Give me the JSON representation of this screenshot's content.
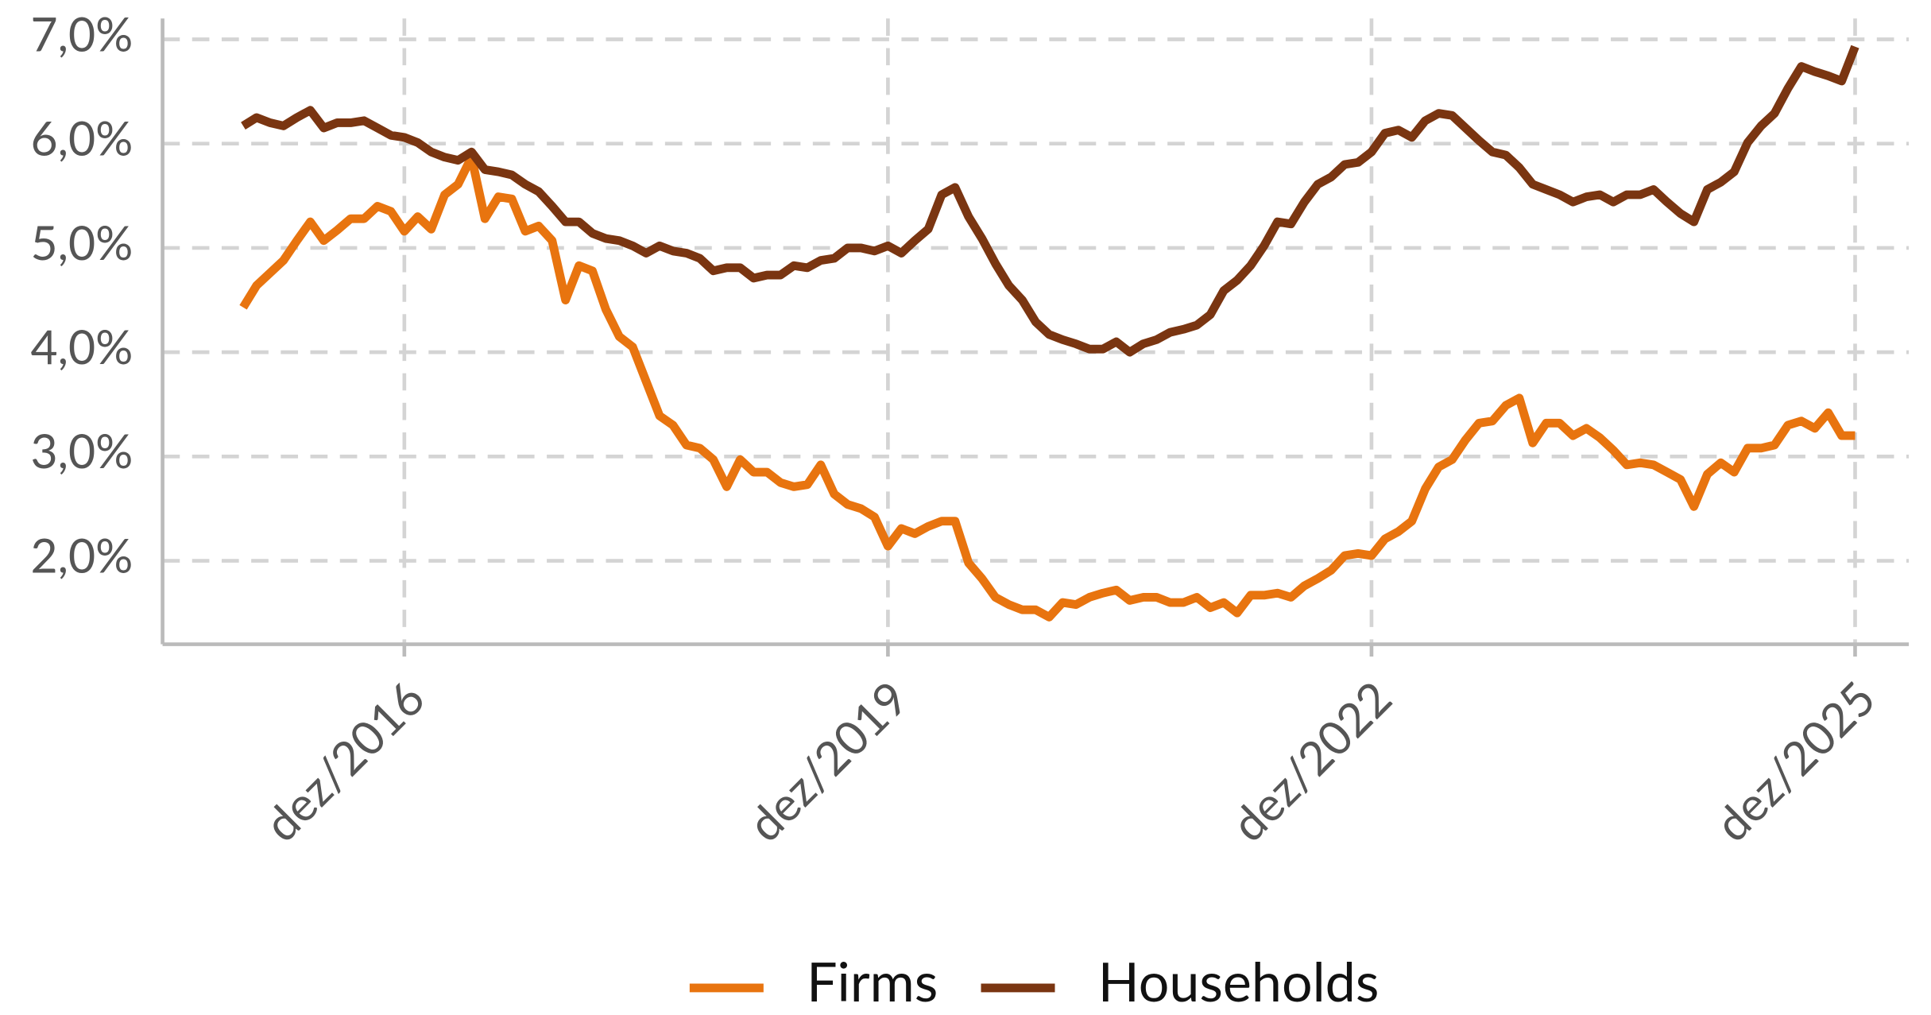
{
  "chart_data": {
    "type": "line",
    "x": [
      "2015-12",
      "2016-01",
      "2016-02",
      "2016-03",
      "2016-04",
      "2016-05",
      "2016-06",
      "2016-07",
      "2016-08",
      "2016-09",
      "2016-10",
      "2016-11",
      "2016-12",
      "2017-01",
      "2017-02",
      "2017-03",
      "2017-04",
      "2017-05",
      "2017-06",
      "2017-07",
      "2017-08",
      "2017-09",
      "2017-10",
      "2017-11",
      "2017-12",
      "2018-01",
      "2018-02",
      "2018-03",
      "2018-04",
      "2018-05",
      "2018-06",
      "2018-07",
      "2018-08",
      "2018-09",
      "2018-10",
      "2018-11",
      "2018-12",
      "2019-01",
      "2019-02",
      "2019-03",
      "2019-04",
      "2019-05",
      "2019-06",
      "2019-07",
      "2019-08",
      "2019-09",
      "2019-10",
      "2019-11",
      "2019-12",
      "2020-01",
      "2020-02",
      "2020-03",
      "2020-04",
      "2020-05",
      "2020-06",
      "2020-07",
      "2020-08",
      "2020-09",
      "2020-10",
      "2020-11",
      "2020-12",
      "2021-01",
      "2021-02",
      "2021-03",
      "2021-04",
      "2021-05",
      "2021-06",
      "2021-07",
      "2021-08",
      "2021-09",
      "2021-10",
      "2021-11",
      "2021-12",
      "2022-01",
      "2022-02",
      "2022-03",
      "2022-04",
      "2022-05",
      "2022-06",
      "2022-07",
      "2022-08",
      "2022-09",
      "2022-10",
      "2022-11",
      "2022-12",
      "2023-01",
      "2023-02",
      "2023-03",
      "2023-04",
      "2023-05",
      "2023-06",
      "2023-07",
      "2023-08",
      "2023-09",
      "2023-10",
      "2023-11",
      "2023-12",
      "2024-01",
      "2024-02",
      "2024-03",
      "2024-04",
      "2024-05",
      "2024-06",
      "2024-07",
      "2024-08",
      "2024-09",
      "2024-10",
      "2024-11",
      "2024-12",
      "2025-01",
      "2025-02",
      "2025-03",
      "2025-04",
      "2025-05",
      "2025-06",
      "2025-07",
      "2025-08",
      "2025-09",
      "2025-10",
      "2025-11",
      "2025-12"
    ],
    "series": [
      {
        "name": "Firms",
        "color": "#e8740f",
        "values": [
          4.43,
          4.64,
          4.76,
          4.88,
          5.07,
          5.25,
          5.07,
          5.17,
          5.28,
          5.28,
          5.4,
          5.35,
          5.16,
          5.3,
          5.18,
          5.51,
          5.61,
          5.87,
          5.28,
          5.49,
          5.47,
          5.16,
          5.21,
          5.07,
          4.5,
          4.83,
          4.78,
          4.41,
          4.15,
          4.05,
          3.72,
          3.39,
          3.3,
          3.11,
          3.08,
          2.97,
          2.71,
          2.97,
          2.85,
          2.85,
          2.75,
          2.71,
          2.73,
          2.92,
          2.64,
          2.54,
          2.5,
          2.42,
          2.14,
          2.31,
          2.26,
          2.33,
          2.38,
          2.38,
          1.98,
          1.83,
          1.65,
          1.58,
          1.53,
          1.53,
          1.46,
          1.6,
          1.58,
          1.65,
          1.69,
          1.72,
          1.62,
          1.65,
          1.65,
          1.6,
          1.6,
          1.65,
          1.55,
          1.6,
          1.5,
          1.67,
          1.67,
          1.69,
          1.65,
          1.76,
          1.83,
          1.91,
          2.05,
          2.07,
          2.05,
          2.21,
          2.28,
          2.38,
          2.69,
          2.9,
          2.97,
          3.16,
          3.32,
          3.34,
          3.49,
          3.56,
          3.13,
          3.32,
          3.32,
          3.2,
          3.27,
          3.18,
          3.06,
          2.92,
          2.94,
          2.92,
          2.85,
          2.78,
          2.52,
          2.83,
          2.94,
          2.85,
          3.08,
          3.08,
          3.11,
          3.3,
          3.34,
          3.27,
          3.42,
          3.2,
          3.2
        ]
      },
      {
        "name": "Households",
        "color": "#7a3511",
        "values": [
          6.17,
          6.25,
          6.2,
          6.17,
          6.25,
          6.32,
          6.15,
          6.2,
          6.2,
          6.22,
          6.15,
          6.08,
          6.06,
          6.01,
          5.92,
          5.87,
          5.84,
          5.92,
          5.75,
          5.73,
          5.7,
          5.61,
          5.54,
          5.4,
          5.25,
          5.25,
          5.14,
          5.09,
          5.07,
          5.02,
          4.95,
          5.02,
          4.97,
          4.95,
          4.9,
          4.78,
          4.81,
          4.81,
          4.71,
          4.74,
          4.74,
          4.83,
          4.81,
          4.88,
          4.9,
          5.0,
          5.0,
          4.97,
          5.02,
          4.95,
          5.07,
          5.18,
          5.51,
          5.58,
          5.3,
          5.09,
          4.85,
          4.64,
          4.5,
          4.29,
          4.17,
          4.12,
          4.08,
          4.03,
          4.03,
          4.1,
          4.0,
          4.08,
          4.12,
          4.19,
          4.22,
          4.26,
          4.36,
          4.59,
          4.69,
          4.83,
          5.02,
          5.25,
          5.23,
          5.44,
          5.61,
          5.68,
          5.8,
          5.82,
          5.92,
          6.1,
          6.13,
          6.06,
          6.22,
          6.29,
          6.27,
          6.15,
          6.03,
          5.92,
          5.89,
          5.77,
          5.61,
          5.56,
          5.51,
          5.44,
          5.49,
          5.51,
          5.44,
          5.51,
          5.51,
          5.56,
          5.44,
          5.33,
          5.25,
          5.56,
          5.63,
          5.73,
          6.01,
          6.17,
          6.29,
          6.53,
          6.74,
          6.69,
          6.65,
          6.6,
          6.93
        ]
      }
    ],
    "xlim": [
      "2015-06",
      "2026-04"
    ],
    "xticks": [
      {
        "value": "2016-12",
        "label": "dez/2016"
      },
      {
        "value": "2019-12",
        "label": "dez/2019"
      },
      {
        "value": "2022-12",
        "label": "dez/2022"
      },
      {
        "value": "2025-12",
        "label": "dez/2025"
      }
    ],
    "ylim": [
      1.2,
      7.2
    ],
    "yticks": [
      {
        "value": 2,
        "label": "2,0%"
      },
      {
        "value": 3,
        "label": "3,0%"
      },
      {
        "value": 4,
        "label": "4,0%"
      },
      {
        "value": 5,
        "label": "5,0%"
      },
      {
        "value": 6,
        "label": "6,0%"
      },
      {
        "value": 7,
        "label": "7,0%"
      }
    ],
    "grid": true,
    "legend": "bottom"
  }
}
